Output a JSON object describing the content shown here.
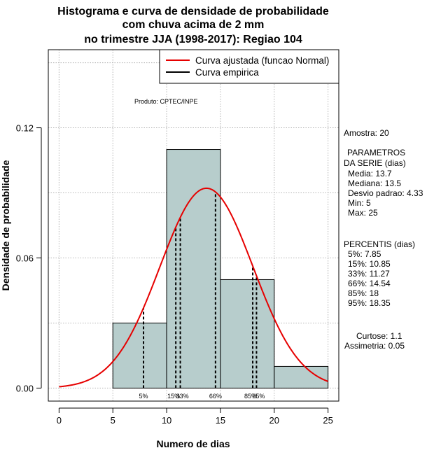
{
  "chart_data": {
    "type": "bar",
    "title_lines": [
      "Histograma e curva de densidade de probabilidade",
      "com chuva acima de 2 mm",
      "no trimestre JJA (1998-2017): Regiao 104"
    ],
    "xlabel": "Numero de dias",
    "ylabel": "Densidade de probabilidade",
    "xlim": [
      -1,
      26
    ],
    "ylim": [
      -0.006,
      0.156
    ],
    "x_ticks": [
      0,
      5,
      10,
      15,
      20,
      25
    ],
    "y_ticks": [
      0.0,
      0.06,
      0.12
    ],
    "y_tick_labels": [
      "0.00",
      "0.06",
      "0.12"
    ],
    "grid": true,
    "bin_edges": [
      5,
      10,
      15,
      20,
      25
    ],
    "densities": [
      0.03,
      0.11,
      0.05,
      0.01
    ],
    "bar_color": "#b7cdcc",
    "curve_color": "#e60000",
    "normal_fit": {
      "mean": 13.7,
      "sd": 4.33
    },
    "percentiles": [
      {
        "label": "5%",
        "value": 7.85
      },
      {
        "label": "15%",
        "value": 10.85
      },
      {
        "label": "33%",
        "value": 11.27
      },
      {
        "label": "66%",
        "value": 14.54
      },
      {
        "label": "85%",
        "value": 18
      },
      {
        "label": "95%",
        "value": 18.35
      }
    ],
    "legend": [
      {
        "label": "Curva ajustada (funcao Normal)",
        "color": "#e60000"
      },
      {
        "label": "Curva empirica",
        "color": "#000000"
      }
    ],
    "annotation": "Produto: CPTEC/INPE"
  },
  "stats_panel": {
    "sample": "Amostra: 20",
    "params_header": "PARAMETROS",
    "params_unit": "DA SERIE (dias)",
    "params": [
      "Media: 13.7",
      "Mediana: 13.5",
      "Desvio padrao: 4.33",
      "Min: 5",
      "Max: 25"
    ],
    "percentis_header": "PERCENTIS (dias)",
    "percentis": [
      "5%: 7.85",
      "15%: 10.85",
      "33%: 11.27",
      "66%: 14.54",
      "85%: 18",
      "95%: 18.35"
    ],
    "kurtosis": "Curtose: 1.1",
    "skewness": "Assimetria: 0.05"
  }
}
